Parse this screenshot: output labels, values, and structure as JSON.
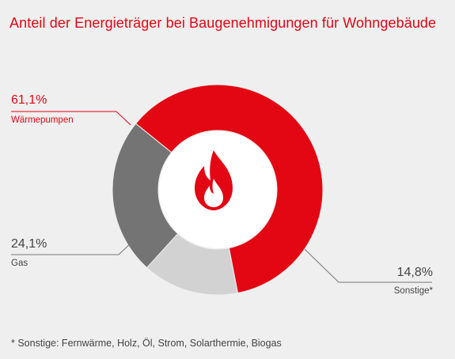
{
  "chart_data": {
    "type": "donut",
    "title": "Anteil der Energieträger bei Baugenehmigungen für Wohngebäude",
    "segments": [
      {
        "name": "Wärmepumpen",
        "value": 61.1,
        "label": "61,1%",
        "color": "#e30613"
      },
      {
        "name": "Sonstige*",
        "value": 14.8,
        "label": "14,8%",
        "color": "#d2d2d2"
      },
      {
        "name": "Gas",
        "value": 24.1,
        "label": "24,1%",
        "color": "#747474"
      }
    ],
    "center_icon": "flame-icon",
    "footnote": "* Sonstige: Fernwärme, Holz, Öl, Strom, Solarthermie, Biogas"
  }
}
